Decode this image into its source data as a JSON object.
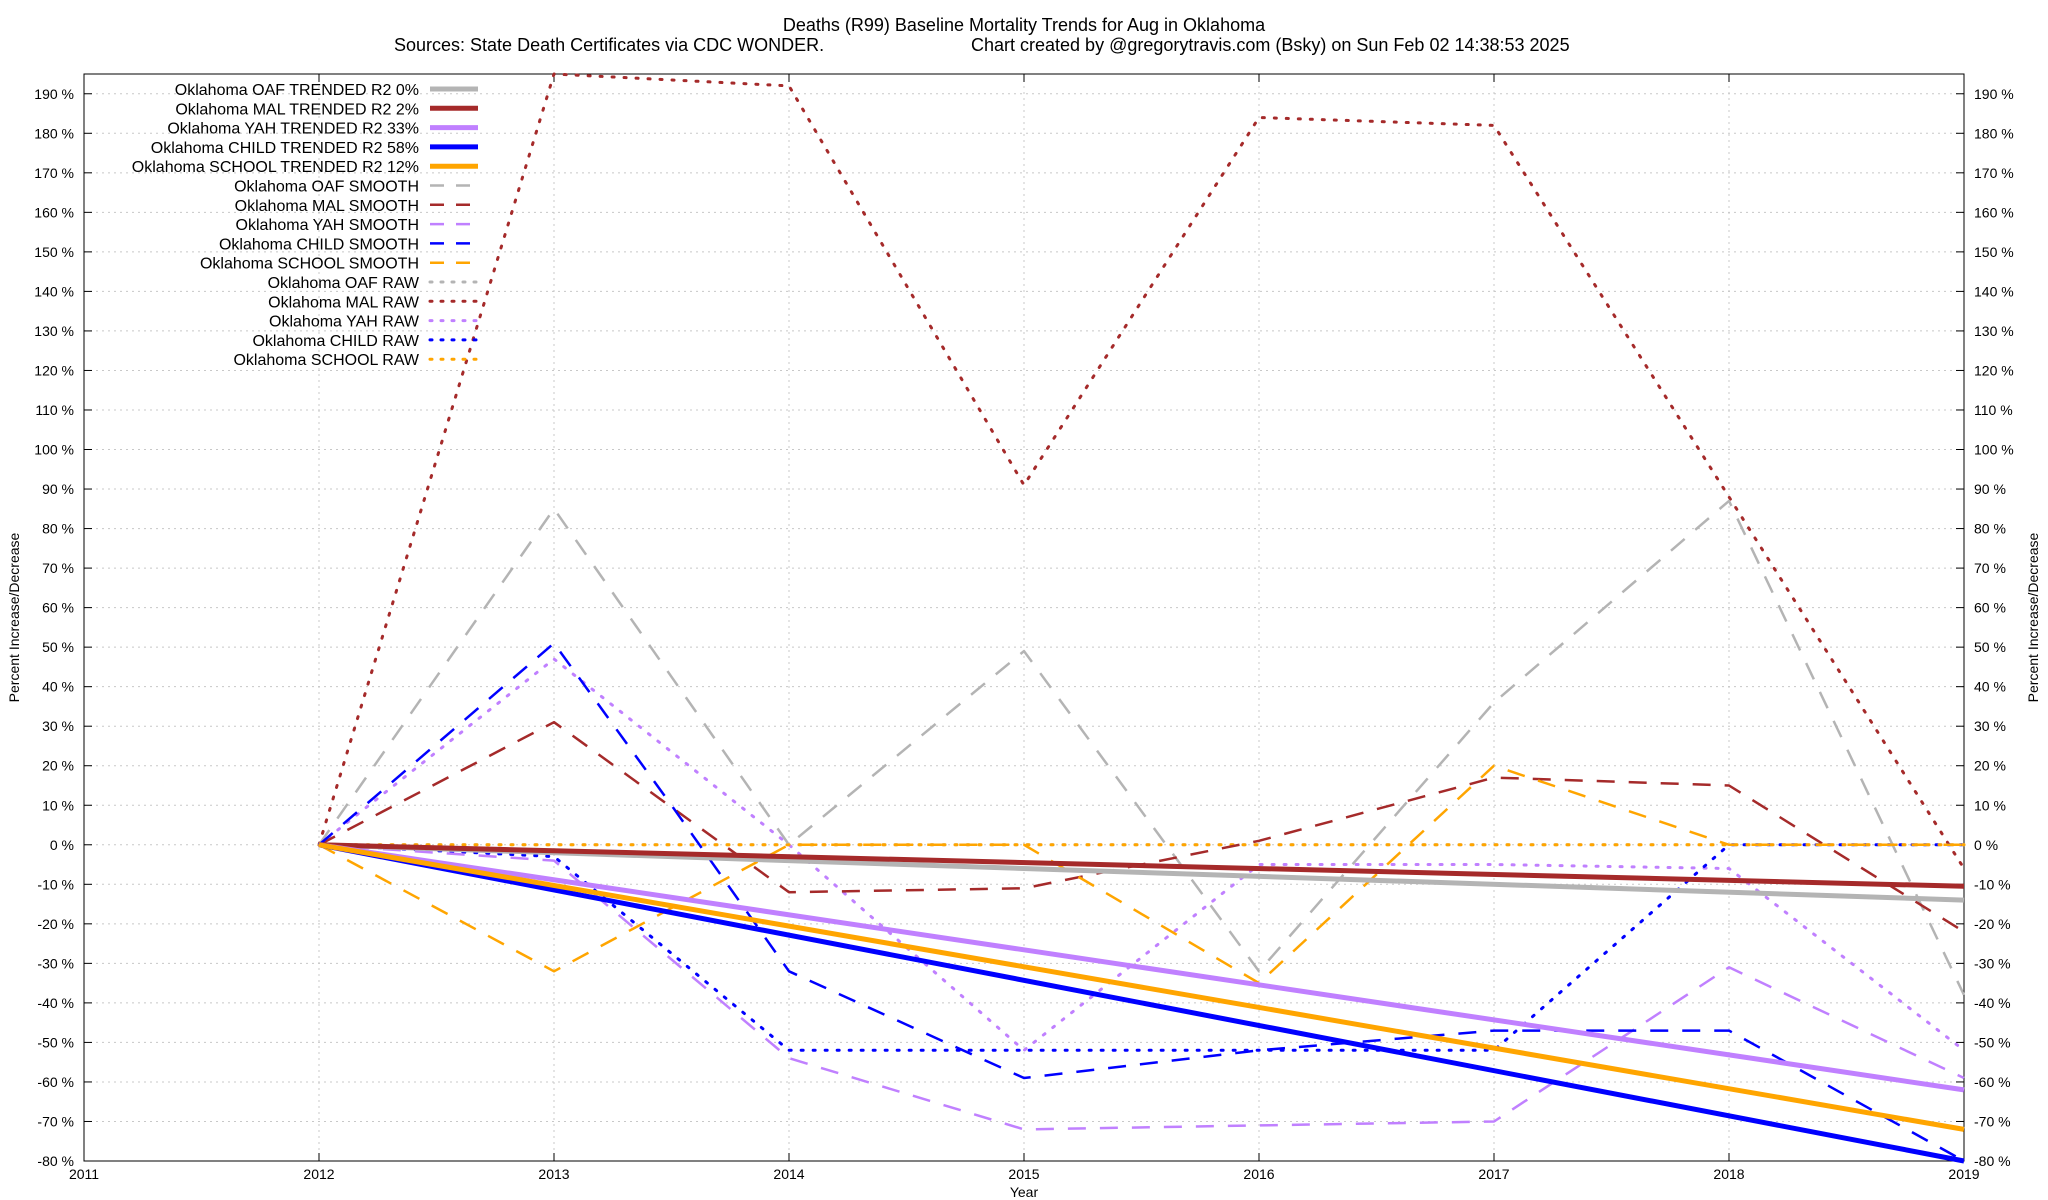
{
  "chart_data": {
    "type": "line",
    "title": "Deaths (R99)  Baseline Mortality Trends for Aug in Oklahoma",
    "subtitle_left": "Sources: State Death Certificates via CDC WONDER.",
    "subtitle_right": "Chart created by @gregorytravis.com (Bsky) on Sun Feb 02 14:38:53 2025",
    "xlabel": "Year",
    "ylabel": "Percent Increase/Decrease",
    "y2label": "Percent Increase/Decrease",
    "xlim": [
      2011,
      2019
    ],
    "ylim": [
      -80,
      195
    ],
    "x_ticks": [
      "2011",
      "2012",
      "2013",
      "2014",
      "2015",
      "2016",
      "2017",
      "2018",
      "2019"
    ],
    "y_ticks": [
      "190 %",
      "180 %",
      "170 %",
      "160 %",
      "150 %",
      "140 %",
      "130 %",
      "120 %",
      "110 %",
      "100 %",
      "90 %",
      "80 %",
      "70 %",
      "60 %",
      "50 %",
      "40 %",
      "30 %",
      "20 %",
      "10 %",
      "0 %",
      "-10 %",
      "-20 %",
      "-30 %",
      "-40 %",
      "-50 %",
      "-60 %",
      "-70 %",
      "-80 %"
    ],
    "y_tick_values": [
      190,
      180,
      170,
      160,
      150,
      140,
      130,
      120,
      110,
      100,
      90,
      80,
      70,
      60,
      50,
      40,
      30,
      20,
      10,
      0,
      -10,
      -20,
      -30,
      -40,
      -50,
      -60,
      -70,
      -80
    ],
    "grid": true,
    "legend_position": "top-left",
    "colors": {
      "OAF": "#b4b4b4",
      "MAL": "#a52a2a",
      "YAH": "#c080ff",
      "CHILD": "#0000ff",
      "SCHOOL": "#ffa500"
    },
    "series": [
      {
        "name": "Oklahoma OAF TRENDED R2  0%",
        "group": "OAF",
        "style": "trend",
        "x": [
          2012,
          2019
        ],
        "y": [
          0,
          -14
        ]
      },
      {
        "name": "Oklahoma MAL TRENDED R2  2%",
        "group": "MAL",
        "style": "trend",
        "x": [
          2012,
          2019
        ],
        "y": [
          0,
          -10.5
        ]
      },
      {
        "name": "Oklahoma YAH TRENDED R2  33%",
        "group": "YAH",
        "style": "trend",
        "x": [
          2012,
          2019
        ],
        "y": [
          0,
          -62
        ]
      },
      {
        "name": "Oklahoma CHILD TRENDED R2  58%",
        "group": "CHILD",
        "style": "trend",
        "x": [
          2012,
          2019
        ],
        "y": [
          0,
          -80
        ]
      },
      {
        "name": "Oklahoma SCHOOL TRENDED R2  12%",
        "group": "SCHOOL",
        "style": "trend",
        "x": [
          2012,
          2019
        ],
        "y": [
          0,
          -72
        ]
      },
      {
        "name": "Oklahoma OAF SMOOTH",
        "group": "OAF",
        "style": "smooth",
        "x": [
          2012,
          2013,
          2014,
          2015,
          2016,
          2017,
          2018,
          2019
        ],
        "y": [
          0,
          85,
          0,
          49,
          -32,
          36,
          87,
          -38
        ]
      },
      {
        "name": "Oklahoma MAL SMOOTH",
        "group": "MAL",
        "style": "smooth",
        "x": [
          2012,
          2013,
          2014,
          2015,
          2016,
          2017,
          2018,
          2019
        ],
        "y": [
          0,
          31,
          -12,
          -11,
          1,
          17,
          15,
          -22
        ]
      },
      {
        "name": "Oklahoma YAH SMOOTH",
        "group": "YAH",
        "style": "smooth",
        "x": [
          2012,
          2013,
          2014,
          2015,
          2016,
          2017,
          2018,
          2019
        ],
        "y": [
          0,
          -4,
          -54,
          -72,
          -71,
          -70,
          -31,
          -59
        ]
      },
      {
        "name": "Oklahoma CHILD SMOOTH",
        "group": "CHILD",
        "style": "smooth",
        "x": [
          2012,
          2013,
          2013.5,
          2014,
          2015,
          2016,
          2017,
          2018,
          2019
        ],
        "y": [
          0,
          51,
          10,
          -32,
          -59,
          -52,
          -47,
          -47,
          -80
        ]
      },
      {
        "name": "Oklahoma SCHOOL SMOOTH",
        "group": "SCHOOL",
        "style": "smooth",
        "x": [
          2012,
          2013,
          2014,
          2015,
          2016,
          2017,
          2018,
          2019
        ],
        "y": [
          0,
          -32,
          0,
          0,
          -35,
          20,
          0,
          0
        ]
      },
      {
        "name": "Oklahoma OAF RAW",
        "group": "OAF",
        "style": "raw",
        "x": [
          2012,
          2013,
          2014,
          2015,
          2016,
          2017,
          2018,
          2019
        ],
        "y": [
          0,
          0,
          0,
          0,
          0,
          0,
          0,
          0
        ]
      },
      {
        "name": "Oklahoma MAL RAW",
        "group": "MAL",
        "style": "raw",
        "x": [
          2012,
          2013,
          2014,
          2015,
          2016,
          2017,
          2018,
          2019
        ],
        "y": [
          0,
          195,
          192,
          91,
          184,
          182,
          88,
          -6
        ]
      },
      {
        "name": "Oklahoma YAH RAW",
        "group": "YAH",
        "style": "raw",
        "x": [
          2012,
          2013,
          2014,
          2015,
          2016,
          2017,
          2018,
          2019
        ],
        "y": [
          0,
          47,
          0,
          -52,
          -5,
          -5,
          -6,
          -52
        ]
      },
      {
        "name": "Oklahoma CHILD RAW",
        "group": "CHILD",
        "style": "raw",
        "x": [
          2012,
          2013,
          2014,
          2015,
          2016,
          2017,
          2018,
          2019
        ],
        "y": [
          0,
          -3,
          -52,
          -52,
          -52,
          -52,
          0,
          0
        ]
      },
      {
        "name": "Oklahoma SCHOOL RAW",
        "group": "SCHOOL",
        "style": "raw",
        "x": [
          2012,
          2013,
          2014,
          2015,
          2016,
          2017,
          2018,
          2019
        ],
        "y": [
          0,
          0,
          0,
          0,
          0,
          0,
          0,
          0
        ]
      }
    ]
  }
}
